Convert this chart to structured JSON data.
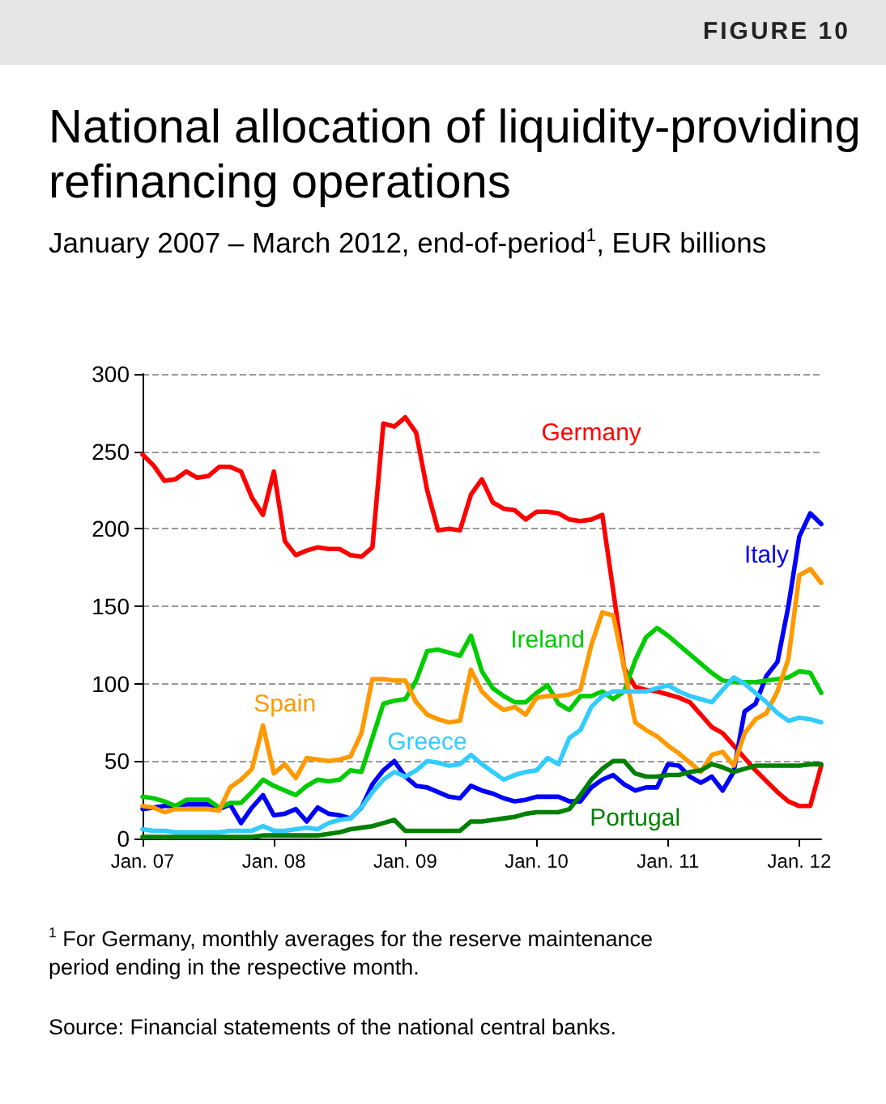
{
  "chart_data": {
    "type": "line",
    "title": "National allocation of liquidity-providing refinancing operations",
    "subtitle": "January 2007 – March 2012, end-of-period$^{1}$, EUR billions",
    "annotations": [
      "FIGURE 10",
      "$^{1}$ For Germany, monthly averages for the reserve maintenance period ending in the respective month.",
      "Source: Financial statements of the national central banks."
    ],
    "categories": [
      "Jan. 07",
      null,
      null,
      null,
      null,
      null,
      null,
      null,
      null,
      null,
      null,
      null,
      "Jan. 08",
      null,
      null,
      null,
      null,
      null,
      null,
      null,
      null,
      null,
      null,
      null,
      "Jan. 09",
      null,
      null,
      null,
      null,
      null,
      null,
      null,
      null,
      null,
      null,
      null,
      "Jan. 10",
      null,
      null,
      null,
      null,
      null,
      null,
      null,
      null,
      null,
      null,
      null,
      "Jan. 11",
      null,
      null,
      null,
      null,
      null,
      null,
      null,
      null,
      null,
      null,
      null,
      "Jan. 12",
      null,
      null
    ],
    "series": [
      {
        "name": "Germany",
        "color": "#ff0000",
        "values": [
          248,
          241,
          231,
          232,
          237,
          233,
          234,
          240,
          240,
          237,
          220,
          209,
          237,
          192,
          183,
          186,
          188,
          187,
          187,
          183,
          182,
          188,
          268,
          266,
          272,
          262,
          225,
          199,
          200,
          199,
          222,
          232,
          217,
          213,
          212,
          206,
          211,
          211,
          210,
          206,
          205,
          206,
          209,
          160,
          110,
          98,
          96,
          95,
          93,
          91,
          88,
          80,
          72,
          68,
          60,
          52,
          44,
          37,
          30,
          24,
          21,
          21,
          47
        ]
      },
      {
        "name": "Italy",
        "color": "#0000ff",
        "values": [
          19,
          20,
          21,
          21,
          22,
          22,
          22,
          19,
          22,
          10,
          20,
          28,
          15,
          16,
          19,
          11,
          20,
          16,
          15,
          13,
          20,
          35,
          44,
          50,
          40,
          34,
          33,
          30,
          27,
          26,
          34,
          31,
          29,
          26,
          24,
          25,
          27,
          27,
          27,
          24,
          24,
          33,
          38,
          41,
          35,
          31,
          33,
          33,
          48,
          47,
          40,
          36,
          40,
          31,
          43,
          82,
          87,
          105,
          114,
          150,
          195,
          210,
          203
        ]
      },
      {
        "name": "Ireland",
        "color": "#00cc00",
        "values": [
          27,
          26,
          24,
          21,
          25,
          25,
          25,
          20,
          23,
          23,
          30,
          38,
          34,
          31,
          28,
          34,
          38,
          37,
          38,
          44,
          43,
          65,
          87,
          89,
          90,
          102,
          121,
          122,
          120,
          118,
          131,
          108,
          97,
          92,
          88,
          88,
          94,
          99,
          87,
          83,
          92,
          92,
          95,
          90,
          95,
          115,
          130,
          136,
          131,
          125,
          119,
          113,
          107,
          102,
          101,
          101,
          101,
          102,
          103,
          104,
          108,
          107,
          94
        ]
      },
      {
        "name": "Spain",
        "color": "#ff9900",
        "values": [
          21,
          20,
          17,
          19,
          19,
          19,
          19,
          18,
          33,
          38,
          45,
          73,
          42,
          48,
          39,
          52,
          51,
          50,
          51,
          53,
          68,
          103,
          103,
          102,
          102,
          88,
          80,
          77,
          75,
          76,
          109,
          95,
          88,
          83,
          85,
          80,
          91,
          92,
          92,
          93,
          96,
          125,
          146,
          144,
          110,
          75,
          70,
          66,
          60,
          55,
          49,
          43,
          54,
          56,
          47,
          68,
          77,
          81,
          95,
          116,
          170,
          174,
          165
        ]
      },
      {
        "name": "Greece",
        "color": "#33ccff",
        "values": [
          6,
          5,
          5,
          4,
          4,
          4,
          4,
          4,
          5,
          5,
          5,
          8,
          5,
          5,
          6,
          7,
          6,
          10,
          12,
          13,
          20,
          30,
          38,
          43,
          40,
          44,
          50,
          49,
          47,
          48,
          54,
          48,
          43,
          38,
          41,
          43,
          44,
          52,
          48,
          65,
          70,
          85,
          92,
          95,
          95,
          95,
          95,
          97,
          99,
          95,
          92,
          90,
          88,
          96,
          104,
          100,
          94,
          88,
          81,
          76,
          78,
          77,
          75
        ]
      },
      {
        "name": "Portugal",
        "color": "#008000",
        "values": [
          1,
          1,
          1,
          1,
          1,
          1,
          1,
          1,
          1,
          1,
          1,
          2,
          2,
          2,
          2,
          2,
          2,
          3,
          4,
          6,
          7,
          8,
          10,
          12,
          5,
          5,
          5,
          5,
          5,
          5,
          11,
          11,
          12,
          13,
          14,
          16,
          17,
          17,
          17,
          19,
          28,
          38,
          45,
          50,
          50,
          42,
          40,
          40,
          41,
          41,
          43,
          44,
          48,
          46,
          43,
          45,
          47,
          47,
          47,
          47,
          47,
          48,
          48
        ]
      }
    ],
    "ylim": [
      0,
      300
    ],
    "yticks": [
      0,
      50,
      100,
      150,
      200,
      250,
      300
    ],
    "grid": "y",
    "legend": false,
    "marker": "none",
    "line_style": "solid"
  }
}
